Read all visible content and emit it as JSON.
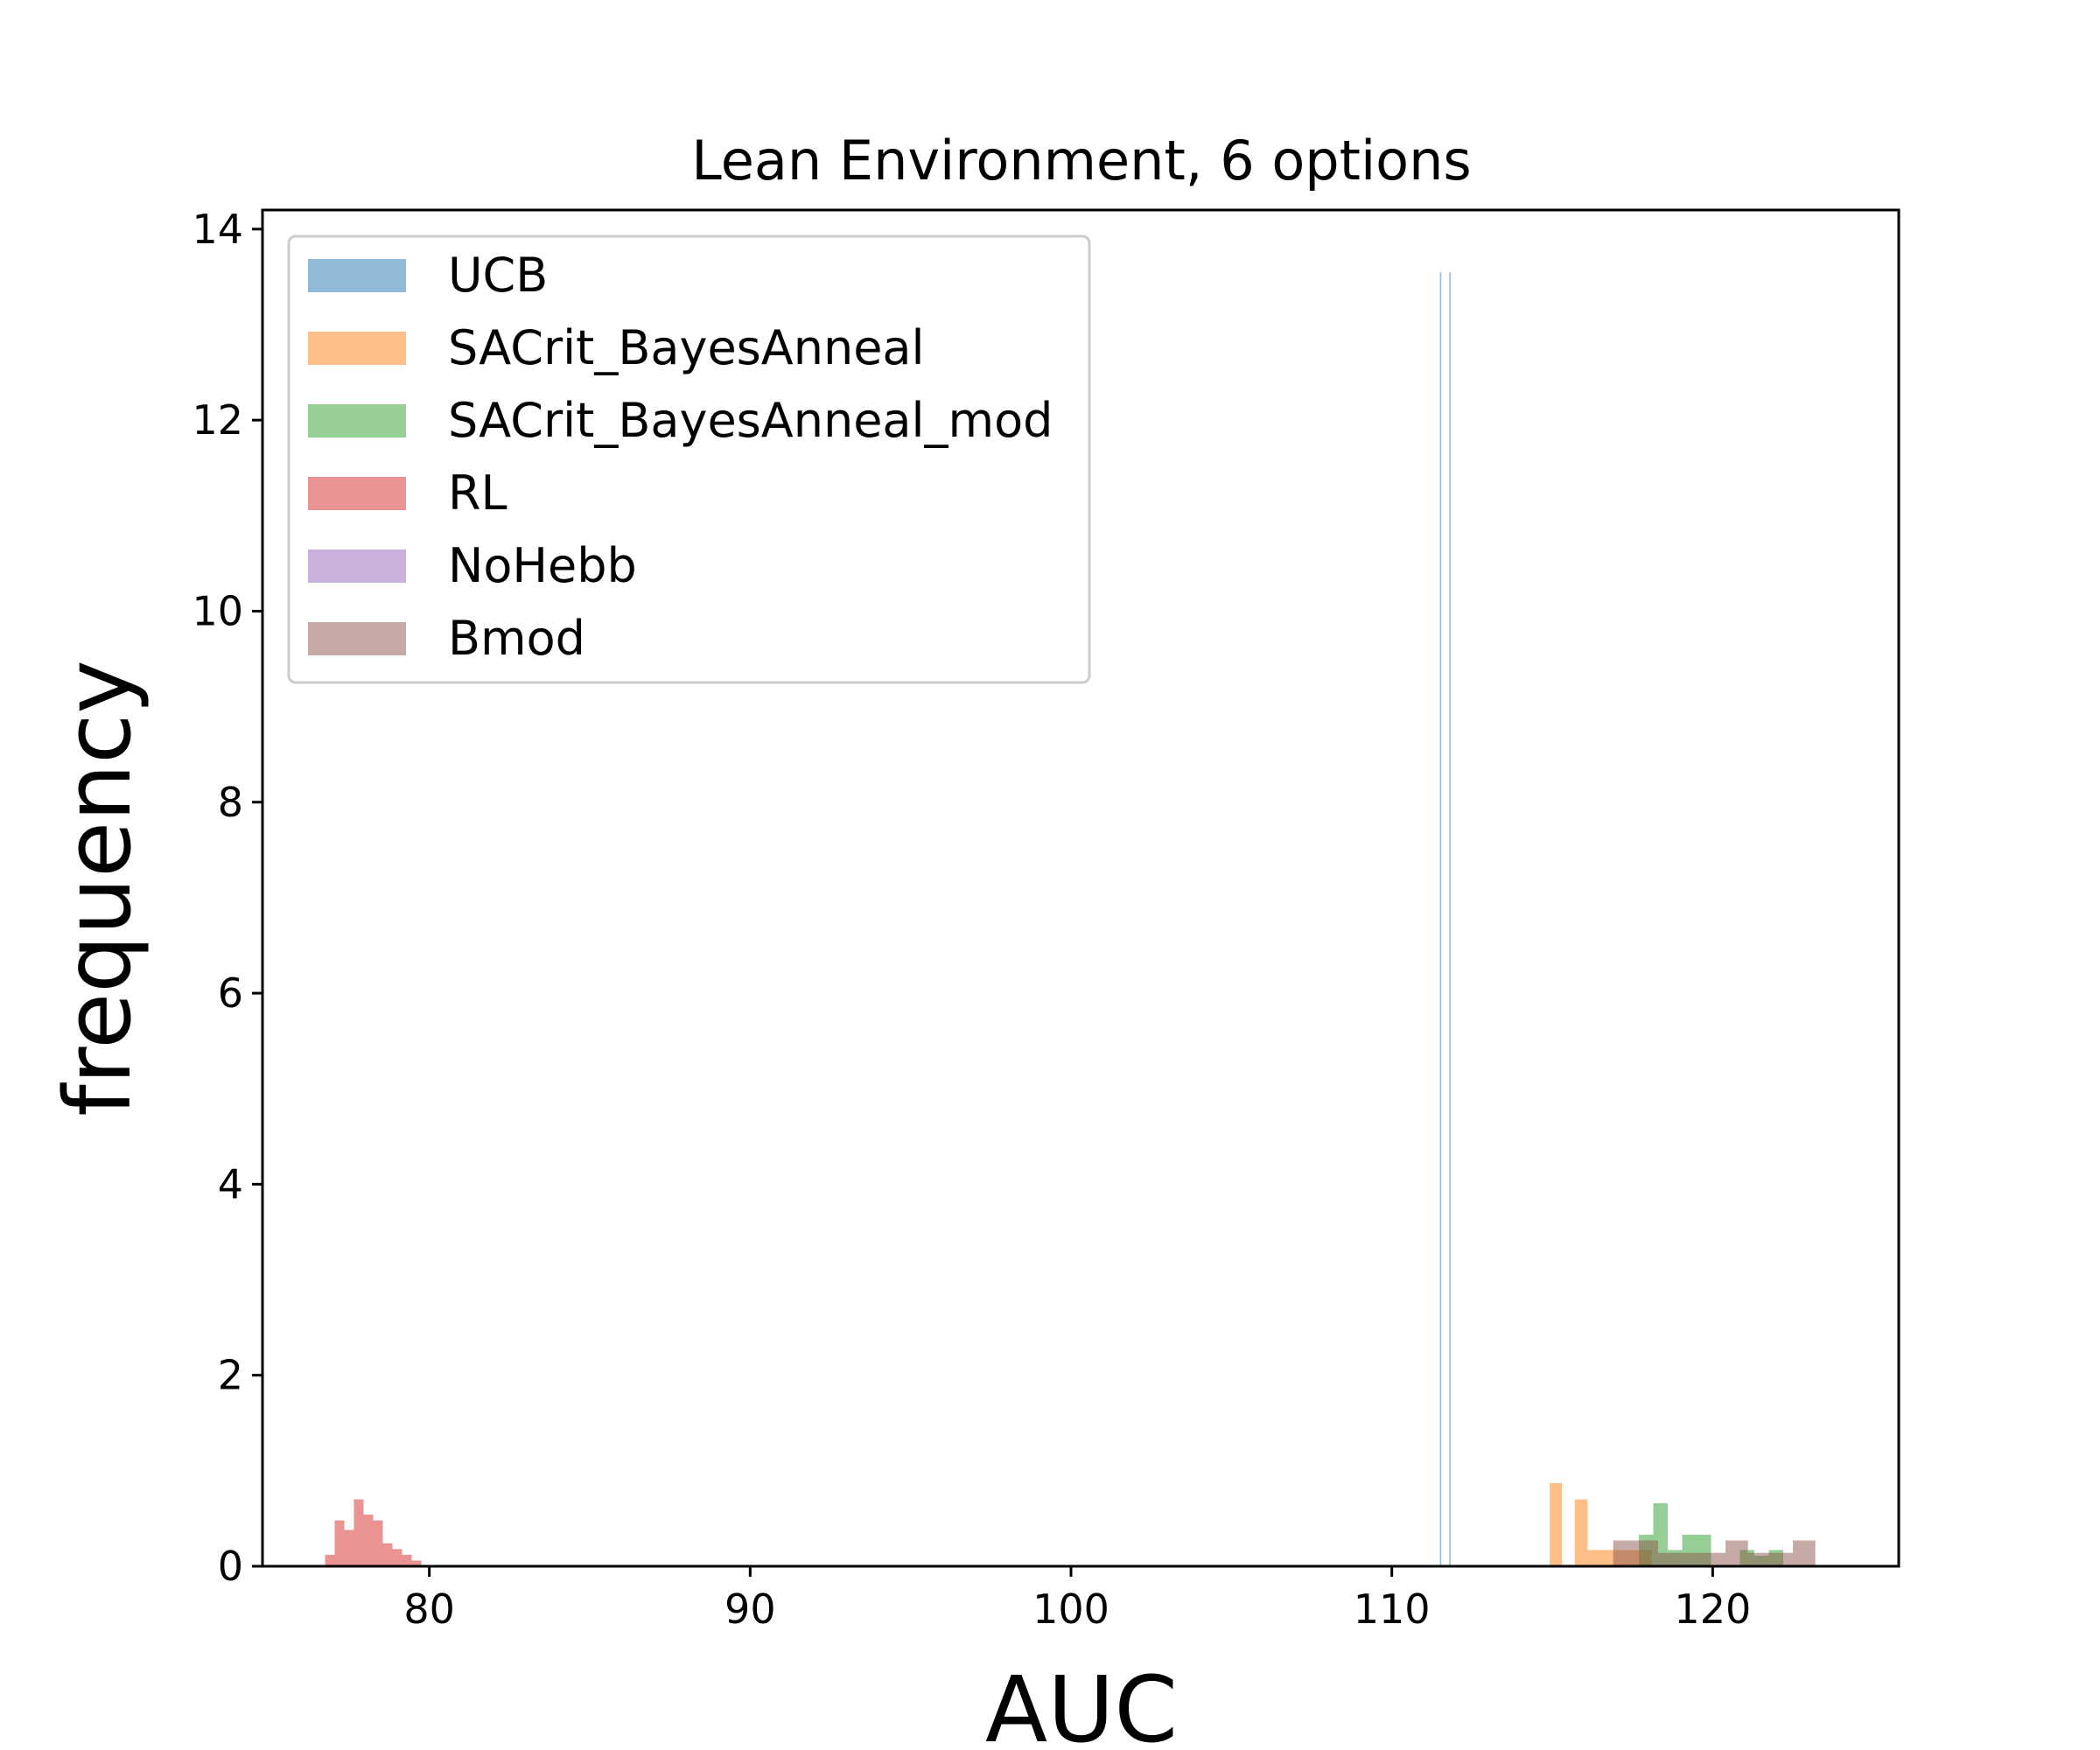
{
  "chart_data": {
    "type": "bar",
    "title": "Lean Environment, 6 options",
    "xlabel": "AUC",
    "ylabel": "frequency",
    "xlim": [
      74.8,
      125.8
    ],
    "ylim": [
      0,
      14.2
    ],
    "xticks": [
      80,
      90,
      100,
      110,
      120
    ],
    "yticks": [
      0,
      2,
      4,
      6,
      8,
      10,
      12,
      14
    ],
    "grid": false,
    "legend_position": "top-left",
    "series": [
      {
        "name": "UCB",
        "color": "#1f77b4",
        "bars": [
          {
            "x0": 111.5,
            "x1": 111.54,
            "y": 13.55
          },
          {
            "x0": 111.79,
            "x1": 111.83,
            "y": 13.55
          }
        ]
      },
      {
        "name": "SACrit_BayesAnneal",
        "color": "#ff7f0e",
        "bars": [
          {
            "x0": 114.92,
            "x1": 115.3,
            "y": 0.87
          },
          {
            "x0": 115.3,
            "x1": 115.7,
            "y": 0.0
          },
          {
            "x0": 115.7,
            "x1": 116.1,
            "y": 0.7
          },
          {
            "x0": 116.1,
            "x1": 116.9,
            "y": 0.17
          },
          {
            "x0": 116.9,
            "x1": 117.7,
            "y": 0.17
          },
          {
            "x0": 117.7,
            "x1": 118.1,
            "y": 0.17
          }
        ]
      },
      {
        "name": "SACrit_BayesAnneal_mod",
        "color": "#2ca02c",
        "bars": [
          {
            "x0": 117.7,
            "x1": 118.15,
            "y": 0.33
          },
          {
            "x0": 118.15,
            "x1": 118.6,
            "y": 0.66
          },
          {
            "x0": 118.6,
            "x1": 119.05,
            "y": 0.17
          },
          {
            "x0": 119.05,
            "x1": 119.95,
            "y": 0.33
          },
          {
            "x0": 119.95,
            "x1": 120.85,
            "y": 0.0
          },
          {
            "x0": 120.85,
            "x1": 121.3,
            "y": 0.17
          },
          {
            "x0": 121.3,
            "x1": 121.75,
            "y": 0.11
          },
          {
            "x0": 121.75,
            "x1": 122.2,
            "y": 0.17
          }
        ]
      },
      {
        "name": "RL",
        "color": "#d62728",
        "bars": [
          {
            "x0": 76.75,
            "x1": 77.05,
            "y": 0.12
          },
          {
            "x0": 77.05,
            "x1": 77.35,
            "y": 0.48
          },
          {
            "x0": 77.35,
            "x1": 77.65,
            "y": 0.38
          },
          {
            "x0": 77.65,
            "x1": 77.95,
            "y": 0.7
          },
          {
            "x0": 77.95,
            "x1": 78.25,
            "y": 0.54
          },
          {
            "x0": 78.25,
            "x1": 78.55,
            "y": 0.48
          },
          {
            "x0": 78.55,
            "x1": 78.85,
            "y": 0.24
          },
          {
            "x0": 78.85,
            "x1": 79.15,
            "y": 0.18
          },
          {
            "x0": 79.15,
            "x1": 79.45,
            "y": 0.12
          },
          {
            "x0": 79.45,
            "x1": 79.75,
            "y": 0.06
          }
        ]
      },
      {
        "name": "NoHebb",
        "color": "#9467bd",
        "bars": []
      },
      {
        "name": "Bmod",
        "color": "#8c564b",
        "bars": [
          {
            "x0": 116.9,
            "x1": 117.6,
            "y": 0.27
          },
          {
            "x0": 117.6,
            "x1": 118.3,
            "y": 0.27
          },
          {
            "x0": 118.3,
            "x1": 119.0,
            "y": 0.14
          },
          {
            "x0": 119.0,
            "x1": 119.7,
            "y": 0.14
          },
          {
            "x0": 119.7,
            "x1": 120.4,
            "y": 0.14
          },
          {
            "x0": 120.4,
            "x1": 121.1,
            "y": 0.27
          },
          {
            "x0": 121.1,
            "x1": 121.8,
            "y": 0.14
          },
          {
            "x0": 121.8,
            "x1": 122.5,
            "y": 0.14
          },
          {
            "x0": 122.5,
            "x1": 123.2,
            "y": 0.27
          }
        ]
      }
    ]
  }
}
